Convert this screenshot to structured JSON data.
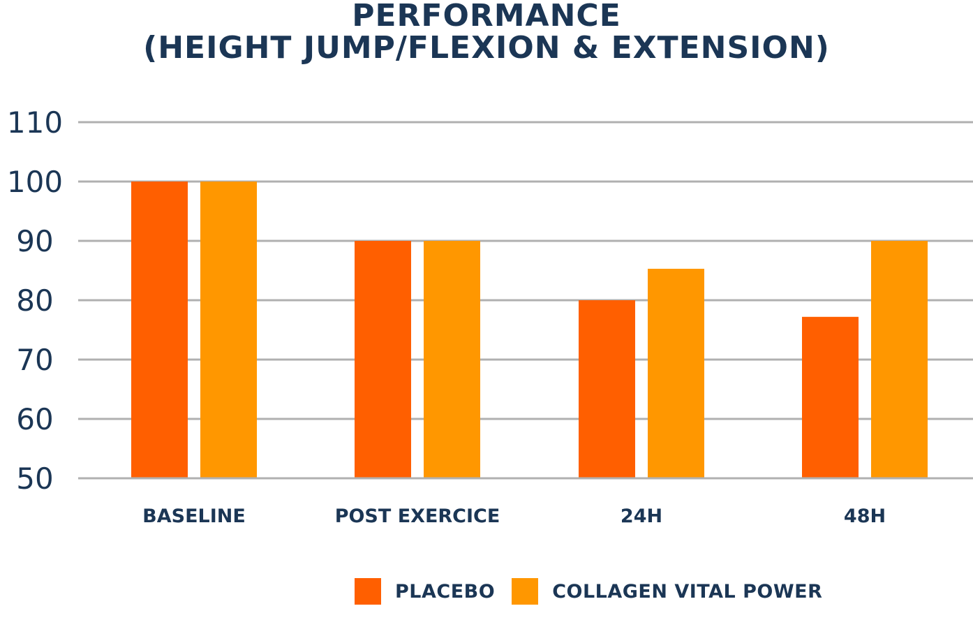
{
  "colors": {
    "placebo": "#ff5f00",
    "collagen": "#ff9700",
    "text": "#1b3655",
    "grid": "#b0b0b0"
  },
  "chart_data": {
    "type": "bar",
    "title_lines": [
      "PERFORMANCE",
      "(HEIGHT JUMP/FLEXION & EXTENSION)"
    ],
    "categories": [
      "BASELINE",
      "POST EXERCICE",
      "24H",
      "48H"
    ],
    "series": [
      {
        "name": "PLACEBO",
        "values": [
          100,
          90,
          80,
          77.2
        ]
      },
      {
        "name": "COLLAGEN VITAL POWER",
        "values": [
          100,
          90,
          85.3,
          90
        ]
      }
    ],
    "yticks": [
      "110",
      "100",
      "90",
      "80",
      "70",
      "60",
      "50"
    ],
    "ylim": [
      50,
      110
    ],
    "grid": true,
    "legend_position": "bottom-center"
  }
}
